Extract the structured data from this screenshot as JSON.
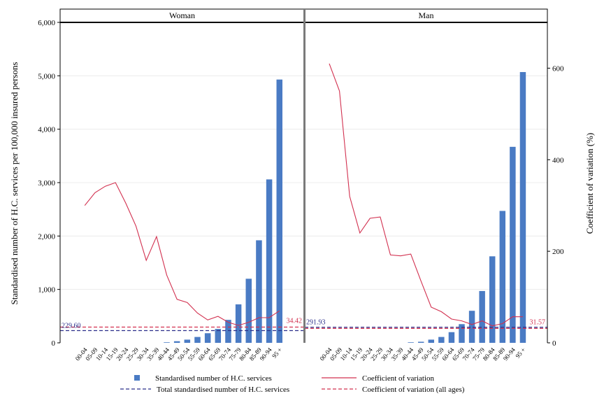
{
  "chart_data": {
    "type": "bar",
    "ylabel": "Standardised number of H.C. services per 100,000 insured persons",
    "y2label": "Coefficient of variation (%)",
    "ylim": [
      0,
      6000
    ],
    "y2lim": [
      0,
      700
    ],
    "yticks": [
      "0",
      "1,000",
      "2,000",
      "3,000",
      "4,000",
      "5,000",
      "6,000"
    ],
    "y2ticks": [
      "0",
      "200",
      "400",
      "600"
    ],
    "categories": [
      "00-04",
      "05-09",
      "10-14",
      "15-19",
      "20-24",
      "25-29",
      "30-34",
      "35-39",
      "40-44",
      "45-49",
      "50-54",
      "55-59",
      "60-64",
      "65-69",
      "70-74",
      "75-79",
      "80-84",
      "85-89",
      "90-94",
      "95 +"
    ],
    "colors": {
      "bar": "#4a7bc4",
      "cv": "#d2304f",
      "total": "#2b2f8a",
      "cv_all": "#d2304f"
    },
    "panels": [
      {
        "name": "Woman",
        "values": [
          0,
          0,
          0,
          0,
          0,
          0,
          0,
          0,
          10,
          30,
          60,
          110,
          180,
          260,
          430,
          720,
          1200,
          1920,
          3060,
          4930
        ],
        "cv": [
          300,
          328,
          342,
          350,
          305,
          255,
          180,
          232,
          148,
          95,
          88,
          65,
          50,
          58,
          45,
          38,
          45,
          55,
          55,
          70
        ],
        "total": 229.6,
        "total_label": "229.60",
        "cv_all": 34.42,
        "cv_all_label": "34.42"
      },
      {
        "name": "Man",
        "values": [
          0,
          0,
          0,
          0,
          0,
          0,
          0,
          0,
          10,
          20,
          60,
          110,
          200,
          350,
          600,
          970,
          1620,
          2470,
          3670,
          5070
        ],
        "cv": [
          610,
          550,
          320,
          240,
          272,
          275,
          192,
          190,
          194,
          135,
          78,
          68,
          52,
          48,
          40,
          48,
          37,
          42,
          57,
          57
        ],
        "total": 291.93,
        "total_label": "291.93",
        "cv_all": 31.57,
        "cv_all_label": "31.57"
      }
    ],
    "legend": [
      {
        "key": "bar",
        "label": "Standardised number of H.C. services"
      },
      {
        "key": "cv",
        "label": "Coefficient of variation"
      },
      {
        "key": "total",
        "label": "Total standardised number of H.C. services"
      },
      {
        "key": "cv_all",
        "label": "Coefficient of variation (all ages)"
      }
    ],
    "legend_position": "bottom",
    "grid": true
  }
}
